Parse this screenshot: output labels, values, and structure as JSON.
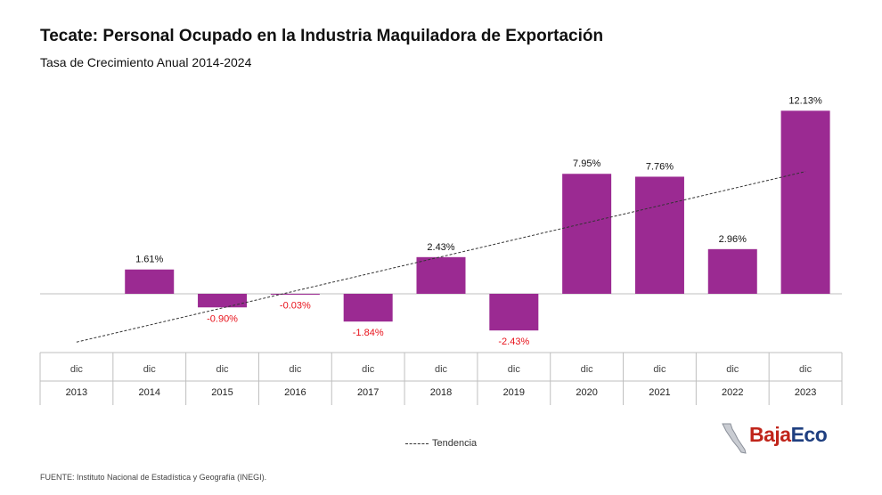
{
  "header": {
    "title": "Tecate: Personal Ocupado en la Industria Maquiladora de Exportación",
    "subtitle": "Tasa de Crecimiento Anual 2014-2024"
  },
  "chart_data": {
    "type": "bar",
    "title": "Tecate: Personal Ocupado en la Industria Maquiladora de Exportación",
    "subtitle": "Tasa de Crecimiento Anual 2014-2024",
    "categories": [
      {
        "month": "dic",
        "year": "2013"
      },
      {
        "month": "dic",
        "year": "2014"
      },
      {
        "month": "dic",
        "year": "2015"
      },
      {
        "month": "dic",
        "year": "2016"
      },
      {
        "month": "dic",
        "year": "2017"
      },
      {
        "month": "dic",
        "year": "2018"
      },
      {
        "month": "dic",
        "year": "2019"
      },
      {
        "month": "dic",
        "year": "2020"
      },
      {
        "month": "dic",
        "year": "2021"
      },
      {
        "month": "dic",
        "year": "2022"
      },
      {
        "month": "dic",
        "year": "2023"
      }
    ],
    "values": [
      null,
      1.61,
      -0.9,
      -0.03,
      -1.84,
      2.43,
      -2.43,
      7.95,
      7.76,
      2.96,
      12.13
    ],
    "labels": [
      "",
      "1.61%",
      "-0.90%",
      "-0.03%",
      "-1.84%",
      "2.43%",
      "-2.43%",
      "7.95%",
      "7.76%",
      "2.96%",
      "12.13%"
    ],
    "ylim": [
      -3.5,
      13.5
    ],
    "trendline": {
      "name": "Tendencia",
      "style": "dashed",
      "color": "#333333",
      "start_value": -3.2,
      "end_value": 8.1
    },
    "colors": {
      "bar": "#9b2a92",
      "positive_label": "#111111",
      "negative_label": "#e8121b",
      "axis": "#bfbfbf"
    },
    "grid": false,
    "legend": "bottom-center"
  },
  "legend": {
    "label": "Tendencia"
  },
  "footer": {
    "source": "FUENTE: Instituto Nacional de Estadística y Geografía (INEGI)."
  },
  "logo": {
    "part1": "Baja",
    "part2": "Eco"
  }
}
